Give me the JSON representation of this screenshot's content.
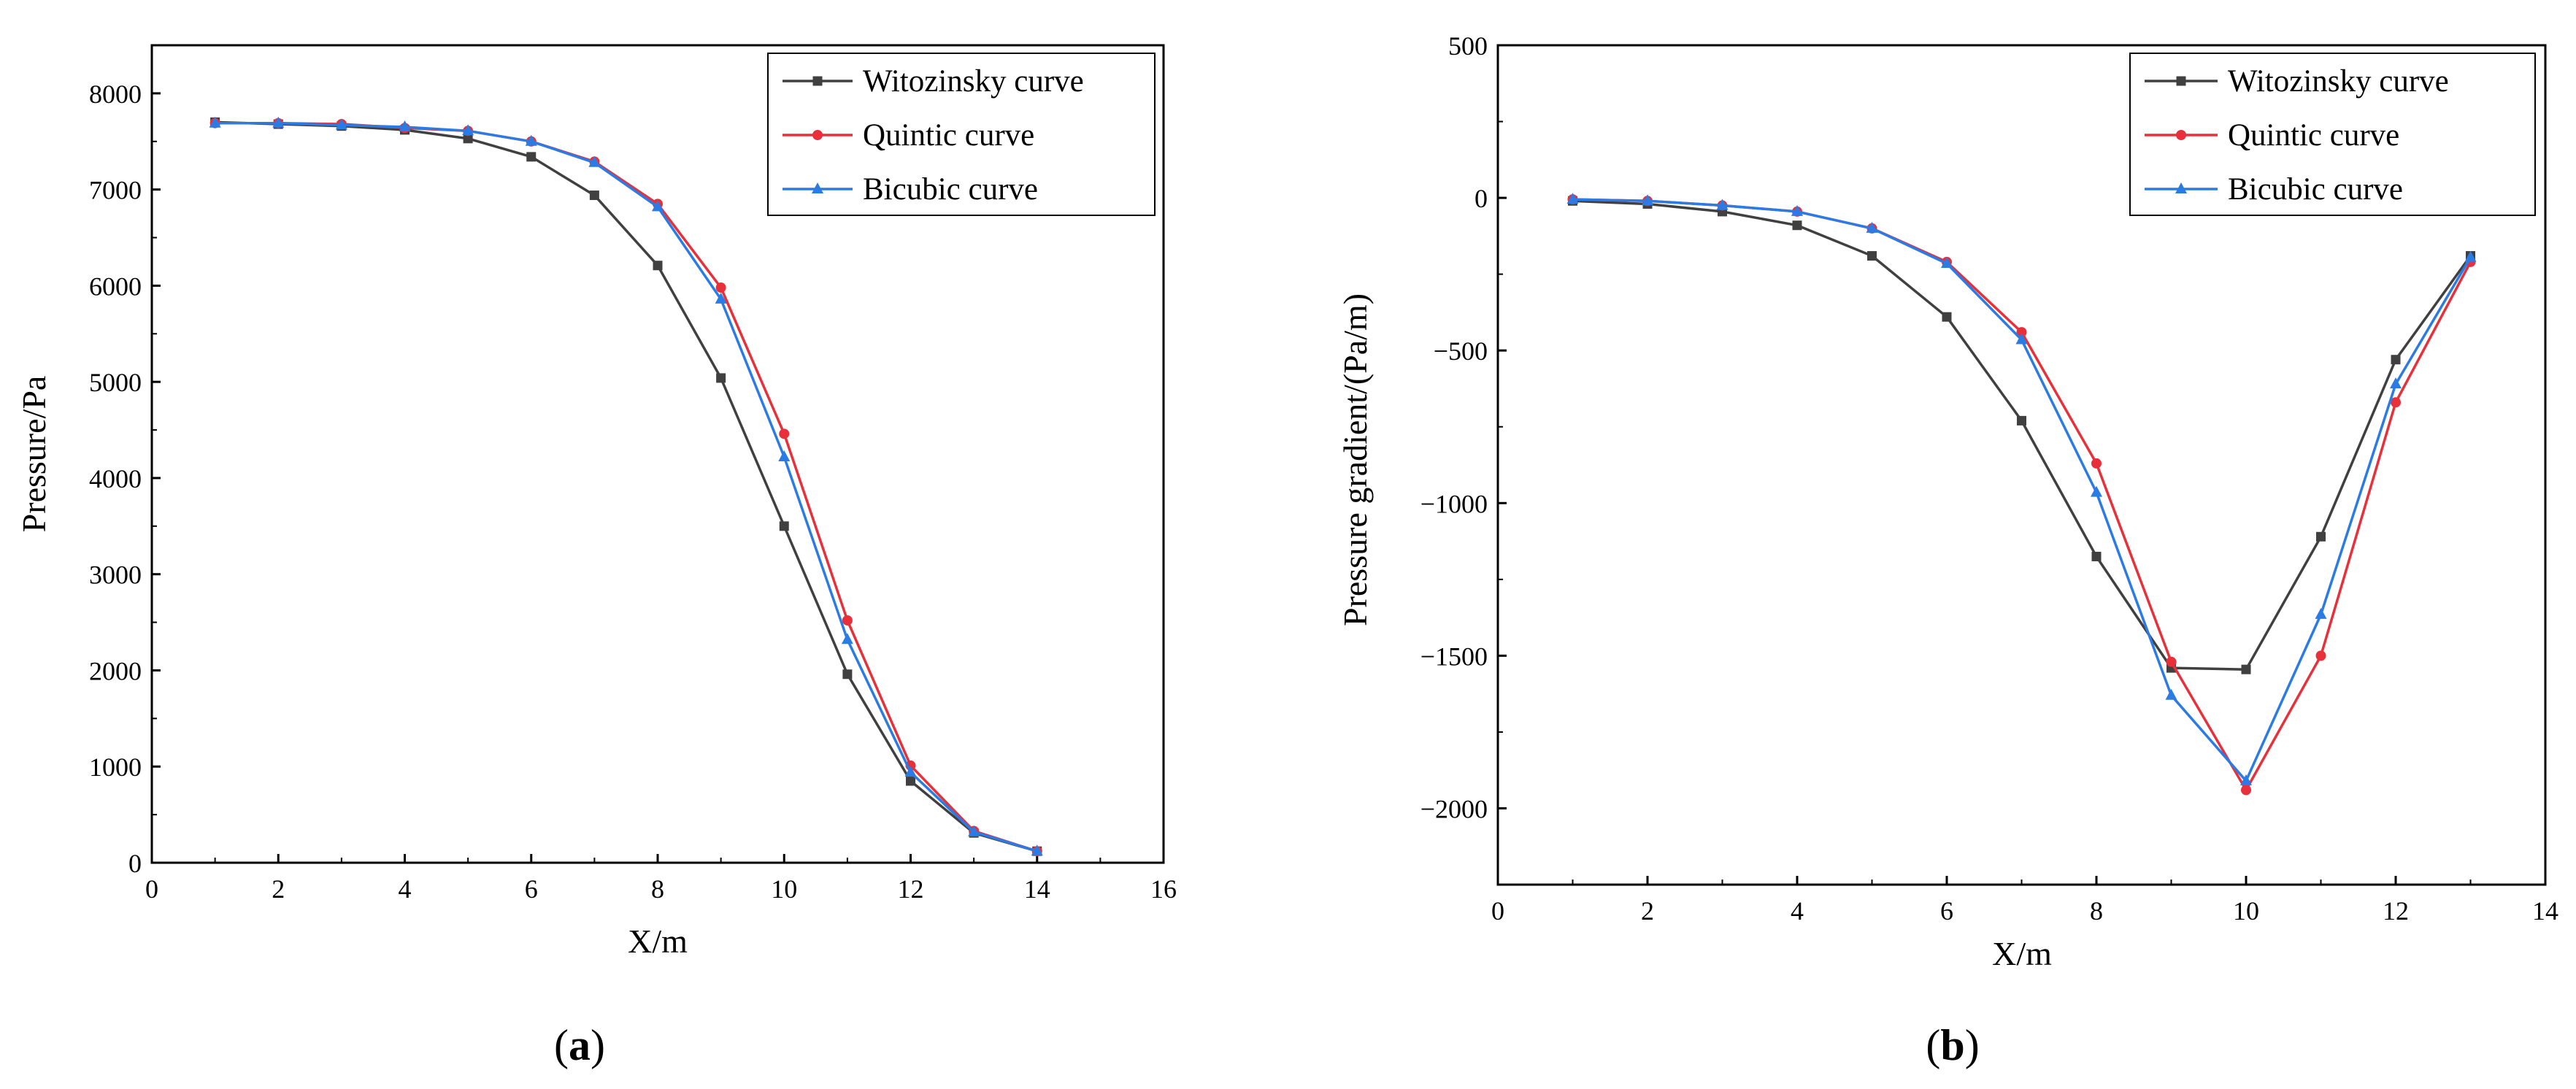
{
  "chart_data": [
    {
      "type": "line",
      "panel_label": "(a)",
      "panel_letter": "a",
      "title": "",
      "xlabel": "X/m",
      "ylabel": "Pressure/Pa",
      "xlim": [
        0,
        16
      ],
      "ylim": [
        0,
        8500
      ],
      "xticks": [
        0,
        2,
        4,
        6,
        8,
        10,
        12,
        14,
        16
      ],
      "yticks": [
        0,
        1000,
        2000,
        3000,
        4000,
        5000,
        6000,
        7000,
        8000
      ],
      "grid": false,
      "legend_position": "top-right",
      "x": [
        1,
        2,
        3,
        4,
        5,
        6,
        7,
        8,
        9,
        10,
        11,
        12,
        13,
        14
      ],
      "series": [
        {
          "name": " Witozinsky curve",
          "color": "#404040",
          "marker": "square",
          "values": [
            7700,
            7680,
            7660,
            7620,
            7530,
            7340,
            6940,
            6210,
            5040,
            3500,
            1960,
            850,
            310,
            120
          ]
        },
        {
          "name": "Quintic curve",
          "color": "#e8303a",
          "marker": "circle",
          "values": [
            7690,
            7690,
            7680,
            7640,
            7610,
            7500,
            7290,
            6850,
            5980,
            4460,
            2520,
            1010,
            330,
            120
          ]
        },
        {
          "name": "Bicubic curve",
          "color": "#2b7be4",
          "marker": "triangle",
          "values": [
            7690,
            7690,
            7670,
            7650,
            7610,
            7500,
            7280,
            6820,
            5860,
            4220,
            2320,
            940,
            320,
            120
          ]
        }
      ]
    },
    {
      "type": "line",
      "panel_label": "(b)",
      "panel_letter": "b",
      "title": "",
      "xlabel": "X/m",
      "ylabel": "Pressure gradient/(Pa/m)",
      "xlim": [
        0,
        14
      ],
      "ylim": [
        -2250,
        500
      ],
      "xticks": [
        0,
        2,
        4,
        6,
        8,
        10,
        12,
        14
      ],
      "yticks": [
        500,
        0,
        -500,
        -1000,
        -1500,
        -2000
      ],
      "grid": false,
      "legend_position": "top-right",
      "x": [
        1,
        2,
        3,
        4,
        5,
        6,
        7,
        8,
        9,
        10,
        11,
        12,
        13
      ],
      "series": [
        {
          "name": "Witozinsky curve",
          "color": "#404040",
          "marker": "square",
          "values": [
            -10,
            -20,
            -45,
            -90,
            -190,
            -390,
            -730,
            -1175,
            -1540,
            -1545,
            -1110,
            -530,
            -190
          ]
        },
        {
          "name": "Quintic curve",
          "color": "#e8303a",
          "marker": "circle",
          "values": [
            -5,
            -10,
            -25,
            -45,
            -100,
            -210,
            -440,
            -870,
            -1520,
            -1940,
            -1500,
            -670,
            -210
          ]
        },
        {
          "name": "Bicubic curve",
          "color": "#2b7be4",
          "marker": "triangle",
          "values": [
            -5,
            -10,
            -25,
            -45,
            -100,
            -215,
            -465,
            -965,
            -1630,
            -1910,
            -1365,
            -610,
            -195
          ]
        }
      ]
    }
  ]
}
